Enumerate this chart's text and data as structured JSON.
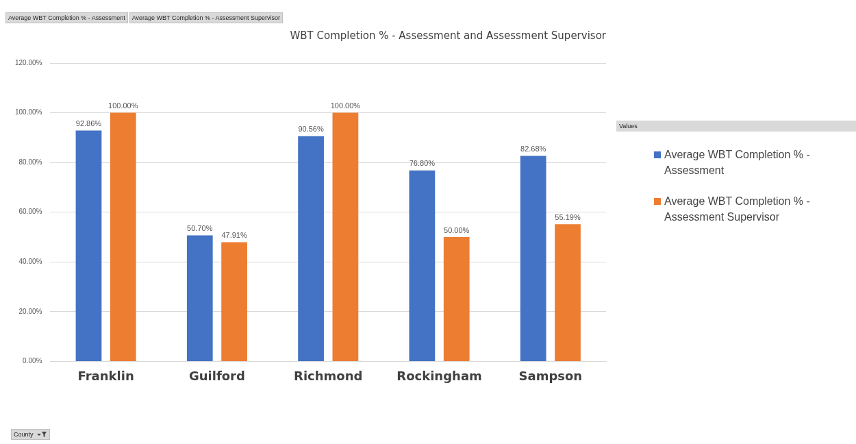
{
  "chart_data": {
    "type": "bar",
    "title": "WBT Completion % - Assessment and Assessment Supervisor",
    "legend_title": "Values",
    "annotations": [
      "Average WBT Completion % - Assessment",
      "Average WBT Completion % - Assessment Supervisor",
      "County"
    ],
    "categories": [
      "Franklin",
      "Guilford",
      "Richmond",
      "Rockingham",
      "Sampson"
    ],
    "series": [
      {
        "name": "Average WBT Completion % - Assessment",
        "color": "#4472c4",
        "values": [
          92.86,
          50.7,
          90.56,
          76.8,
          82.68
        ],
        "value_labels": [
          "92.86%",
          "50.70%",
          "90.56%",
          "76.80%",
          "82.68%"
        ]
      },
      {
        "name": "Average WBT Completion % - Assessment Supervisor",
        "color": "#ed7d31",
        "values": [
          100,
          47.91,
          100,
          50,
          55.19
        ],
        "value_labels": [
          "100.00%",
          "47.91%",
          "100.00%",
          "50.00%",
          "55.19%"
        ]
      }
    ],
    "ylim": [
      0,
      120
    ],
    "yticks": [
      {
        "value": 0,
        "label": "0.00%"
      },
      {
        "value": 20,
        "label": "20.00%"
      },
      {
        "value": 40,
        "label": "40.00%"
      },
      {
        "value": 60,
        "label": "60.00%"
      },
      {
        "value": 80,
        "label": "80.00%"
      },
      {
        "value": 100,
        "label": "100.00%"
      },
      {
        "value": 120,
        "label": "120.00%"
      }
    ],
    "grid": "y",
    "legend": "right"
  }
}
